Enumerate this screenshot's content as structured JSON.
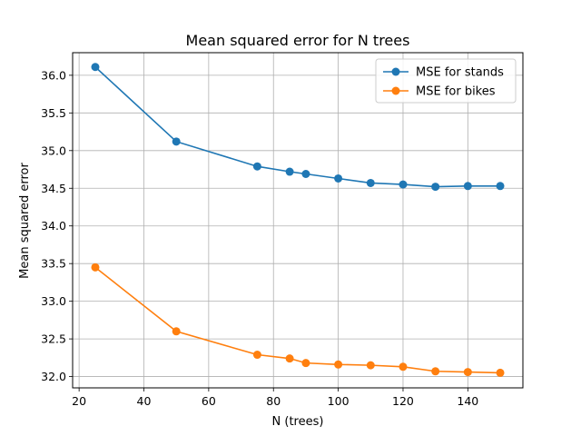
{
  "chart_data": {
    "type": "line",
    "title": "Mean squared error for N trees",
    "xlabel": "N (trees)",
    "ylabel": "Mean squared error",
    "xlim": [
      18,
      157
    ],
    "ylim": [
      31.85,
      36.3
    ],
    "xticks": [
      20,
      40,
      60,
      80,
      100,
      120,
      140
    ],
    "yticks": [
      32.0,
      32.5,
      33.0,
      33.5,
      34.0,
      34.5,
      35.0,
      35.5,
      36.0
    ],
    "grid": true,
    "legend_position": "top-right",
    "x": [
      25,
      50,
      75,
      85,
      90,
      100,
      110,
      120,
      130,
      140,
      150
    ],
    "series": [
      {
        "name": "MSE for stands",
        "color": "#1f77b4",
        "values": [
          36.11,
          35.12,
          34.79,
          34.72,
          34.69,
          34.63,
          34.57,
          34.55,
          34.52,
          34.53,
          34.53
        ]
      },
      {
        "name": "MSE for bikes",
        "color": "#ff7f0e",
        "values": [
          33.45,
          32.6,
          32.29,
          32.24,
          32.18,
          32.16,
          32.15,
          32.13,
          32.07,
          32.06,
          32.05
        ]
      }
    ]
  }
}
